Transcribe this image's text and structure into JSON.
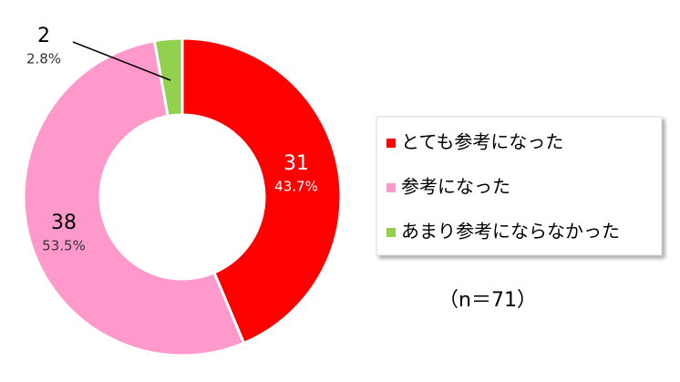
{
  "chart_data": {
    "type": "donut",
    "categories": [
      "とても参考になった",
      "参考になった",
      "あまり参考にならなかった"
    ],
    "values": [
      31,
      38,
      2
    ],
    "percent_labels": [
      "43.7%",
      "53.5%",
      "2.8%"
    ],
    "colors": [
      "#ff0000",
      "#ff99cc",
      "#92d050"
    ],
    "note": "（n＝71）"
  }
}
